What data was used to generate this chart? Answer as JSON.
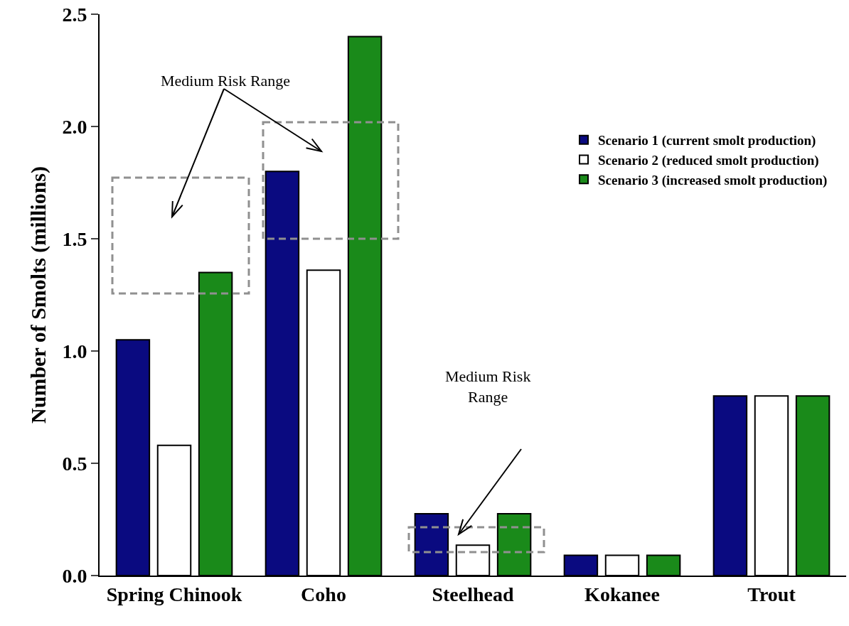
{
  "chart_data": {
    "type": "bar",
    "ylabel": "Number of Smolts (millions)",
    "categories": [
      "Spring Chinook",
      "Coho",
      "Steelhead",
      "Kokanee",
      "Trout"
    ],
    "series": [
      {
        "name": "Scenario 1 (current smolt production)",
        "color": "#0a0a80",
        "values": [
          1.05,
          1.8,
          0.275,
          0.09,
          0.8
        ]
      },
      {
        "name": "Scenario 2 (reduced smolt production)",
        "color": "#ffffff",
        "values": [
          0.58,
          1.36,
          0.135,
          0.09,
          0.8
        ]
      },
      {
        "name": "Scenario 3 (increased smolt production)",
        "color": "#1a8a1a",
        "values": [
          1.35,
          2.4,
          0.275,
          0.09,
          0.8
        ]
      }
    ],
    "ylim": [
      0,
      2.5
    ],
    "yticks": [
      {
        "value": 0,
        "label": "0.0"
      },
      {
        "value": 0.5,
        "label": "0.5"
      },
      {
        "value": 1,
        "label": "1.0"
      },
      {
        "value": 1.5,
        "label": "1.5"
      },
      {
        "value": 2,
        "label": "2.0"
      },
      {
        "value": 2.5,
        "label": "2.5"
      }
    ],
    "annotations": [
      "Medium Risk Range",
      "Medium Risk\nRange"
    ],
    "grid": false,
    "legend": "top right"
  }
}
